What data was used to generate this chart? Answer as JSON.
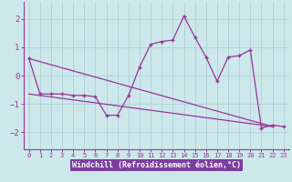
{
  "xlabel": "Windchill (Refroidissement éolien,°C)",
  "background_color": "#cce8ea",
  "xlabel_bg": "#7b3f9e",
  "line_color": "#993399",
  "grid_color": "#b0d0d4",
  "yticks": [
    -2,
    -1,
    0,
    1,
    2
  ],
  "ylim": [
    -2.6,
    2.6
  ],
  "xlim": [
    -0.5,
    23.5
  ],
  "xticks": [
    0,
    1,
    2,
    3,
    4,
    5,
    6,
    7,
    8,
    9,
    10,
    11,
    12,
    13,
    14,
    15,
    16,
    17,
    18,
    19,
    20,
    21,
    22,
    23
  ],
  "series1_x": [
    0,
    1,
    2,
    3,
    4,
    5,
    6,
    7,
    8,
    9,
    10,
    11,
    12,
    13,
    14,
    15,
    16,
    17,
    18,
    19,
    20,
    21,
    22,
    23
  ],
  "series1_y": [
    0.6,
    -0.65,
    -0.65,
    -0.65,
    -0.7,
    -0.7,
    -0.75,
    -1.4,
    -1.4,
    -0.7,
    0.3,
    1.1,
    1.2,
    1.25,
    2.1,
    1.35,
    0.65,
    -0.2,
    0.65,
    0.7,
    0.9,
    -1.85,
    -1.75,
    -1.8
  ],
  "series2_x": [
    0,
    22
  ],
  "series2_y": [
    0.6,
    -1.8
  ],
  "series3_x": [
    0,
    22
  ],
  "series3_y": [
    -0.65,
    -1.8
  ]
}
